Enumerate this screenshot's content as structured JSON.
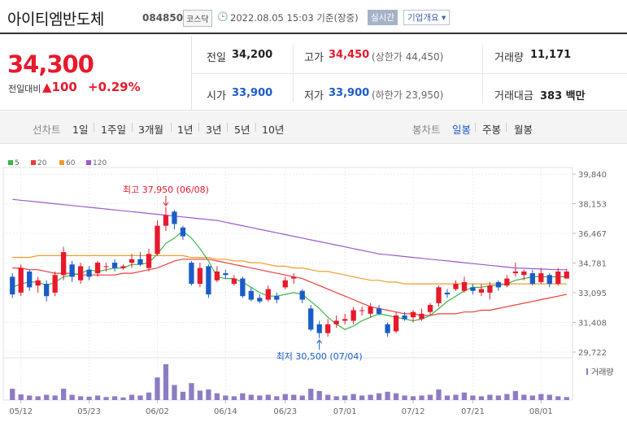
{
  "header": {
    "name": "아이티엠반도체",
    "code": "084850",
    "market": "코스닥",
    "datetime": "2022.08.05 15:03 기준(장중)",
    "realtime_btn": "실시간",
    "company_btn": "기업개요"
  },
  "price": {
    "current": "34,300",
    "diff_label": "전일대비",
    "diff_value": "▲100",
    "diff_rate": "+0.29%"
  },
  "summary": {
    "prev_close_label": "전일",
    "prev_close": "34,200",
    "high_label": "고가",
    "high": "34,450",
    "upper_limit": "(상한가 44,450)",
    "volume_label": "거래량",
    "volume": "11,171",
    "open_label": "시가",
    "open": "33,900",
    "low_label": "저가",
    "low": "33,900",
    "lower_limit": "(하한가 23,950)",
    "amount_label": "거래대금",
    "amount": "383 백만"
  },
  "toolbar": {
    "line_label": "선차트",
    "line_periods": [
      "1일",
      "1주일",
      "3개월",
      "1년",
      "3년",
      "5년",
      "10년"
    ],
    "candle_label": "봉차트",
    "candle_periods": [
      "일봉",
      "주봉",
      "월봉"
    ],
    "candle_active": "일봉"
  },
  "colors": {
    "up": "#e8192c",
    "down": "#1a5cc8",
    "ma5": "#3cb44b",
    "ma20": "#e8403a",
    "ma60": "#f39c2b",
    "ma120": "#9b59d0",
    "volume": "#8e7cc3"
  },
  "chart_data": {
    "type": "candlestick",
    "legend": [
      "5",
      "20",
      "60",
      "120"
    ],
    "y_ticks": [
      "39,840",
      "38,153",
      "36,467",
      "34,781",
      "33,095",
      "31,408",
      "29,722"
    ],
    "ylim": [
      29722,
      39840
    ],
    "x_ticks": [
      "05/12",
      "05/23",
      "06/02",
      "06/14",
      "06/23",
      "07/01",
      "07/12",
      "07/21",
      "08/01"
    ],
    "high_annotation": "최고 37,950 (06/08)",
    "low_annotation": "최저 30,500 (07/04)",
    "volume_label": "거래량",
    "candles": [
      [
        34000,
        33000,
        34200,
        32800
      ],
      [
        33100,
        34500,
        34700,
        32900
      ],
      [
        34300,
        33400,
        34400,
        33200
      ],
      [
        33500,
        33800,
        34000,
        33100
      ],
      [
        33600,
        32900,
        33800,
        32600
      ],
      [
        33100,
        34100,
        34300,
        32900
      ],
      [
        34100,
        35400,
        35700,
        33800
      ],
      [
        34700,
        34000,
        34900,
        33700
      ],
      [
        33800,
        34600,
        34800,
        33600
      ],
      [
        34400,
        34000,
        34600,
        33800
      ],
      [
        34200,
        34800,
        34900,
        34000
      ],
      [
        34600,
        34600,
        34800,
        34300
      ],
      [
        34800,
        34500,
        35000,
        34300
      ],
      [
        34500,
        34600,
        34700,
        34400
      ],
      [
        34800,
        35000,
        35300,
        34500
      ],
      [
        35000,
        34700,
        35400,
        34600
      ],
      [
        34500,
        35300,
        35600,
        34300
      ],
      [
        35300,
        36900,
        37200,
        35200
      ],
      [
        36900,
        37500,
        37950,
        36600
      ],
      [
        37700,
        37000,
        37800,
        36700
      ],
      [
        36800,
        36300,
        36900,
        36100
      ],
      [
        34800,
        33600,
        34900,
        33500
      ],
      [
        33600,
        34500,
        34800,
        33400
      ],
      [
        34600,
        33000,
        34700,
        32800
      ],
      [
        33800,
        34300,
        34600,
        33700
      ],
      [
        34200,
        34100,
        34400,
        33900
      ],
      [
        33600,
        33900,
        34100,
        33500
      ],
      [
        33900,
        32900,
        34000,
        32800
      ],
      [
        33200,
        32700,
        33400,
        32600
      ],
      [
        32800,
        32600,
        33000,
        32500
      ],
      [
        32700,
        33300,
        33500,
        32600
      ],
      [
        32900,
        32700,
        33100,
        32500
      ],
      [
        33400,
        33800,
        34000,
        33300
      ],
      [
        33900,
        34000,
        34200,
        33600
      ],
      [
        33200,
        32700,
        33300,
        32500
      ],
      [
        32200,
        31000,
        32400,
        30900
      ],
      [
        31300,
        30800,
        31500,
        30500
      ],
      [
        30800,
        31300,
        31600,
        30600
      ],
      [
        31300,
        31500,
        31800,
        31100
      ],
      [
        31500,
        31600,
        31900,
        31300
      ],
      [
        31500,
        32100,
        32300,
        31300
      ],
      [
        32100,
        32100,
        32300,
        31800
      ],
      [
        31900,
        32300,
        32500,
        31700
      ],
      [
        32200,
        31900,
        32400,
        31800
      ],
      [
        31300,
        30800,
        31400,
        30600
      ],
      [
        30900,
        31800,
        32000,
        30800
      ],
      [
        31800,
        31600,
        32000,
        31500
      ],
      [
        31700,
        32000,
        32100,
        31400
      ],
      [
        31600,
        31900,
        32200,
        31500
      ],
      [
        32000,
        32400,
        32500,
        31800
      ],
      [
        32500,
        33400,
        33500,
        32300
      ],
      [
        33100,
        33000,
        33300,
        32800
      ],
      [
        33300,
        33600,
        33800,
        33200
      ],
      [
        33200,
        33700,
        34000,
        33100
      ],
      [
        33400,
        33200,
        33600,
        33000
      ],
      [
        33100,
        33300,
        33600,
        32900
      ],
      [
        33100,
        33500,
        33700,
        32700
      ],
      [
        33700,
        33400,
        33800,
        33200
      ],
      [
        33500,
        33900,
        34100,
        33400
      ],
      [
        34200,
        34300,
        34800,
        34000
      ],
      [
        34100,
        34300,
        34400,
        33800
      ],
      [
        34200,
        33600,
        34400,
        33500
      ],
      [
        33700,
        34200,
        34500,
        33600
      ],
      [
        34100,
        33600,
        34200,
        33400
      ],
      [
        33600,
        34300,
        34500,
        33500
      ],
      [
        33900,
        34300,
        34450,
        33900
      ]
    ],
    "ma5": [
      33400,
      33600,
      33700,
      33700,
      33500,
      33700,
      34000,
      34100,
      34200,
      34400,
      34300,
      34400,
      34500,
      34500,
      34700,
      34700,
      34800,
      35300,
      35900,
      36200,
      36600,
      36200,
      35600,
      34900,
      34000,
      33900,
      33900,
      33700,
      33400,
      33100,
      32900,
      32900,
      33000,
      33100,
      33000,
      32600,
      32200,
      31700,
      31300,
      31000,
      31200,
      31500,
      31700,
      31900,
      31800,
      31700,
      31600,
      31500,
      31600,
      31800,
      32200,
      32600,
      32900,
      33200,
      33400,
      33400,
      33500,
      33500,
      33600,
      33800,
      33900,
      34000,
      34000,
      34000,
      34000,
      34000
    ],
    "ma20": [
      34500,
      34500,
      34400,
      34400,
      34300,
      34200,
      34200,
      34200,
      34100,
      34100,
      34100,
      34100,
      34100,
      34200,
      34200,
      34300,
      34400,
      34500,
      34700,
      34900,
      35000,
      35000,
      35000,
      35000,
      34900,
      34800,
      34700,
      34600,
      34500,
      34400,
      34300,
      34200,
      34100,
      34000,
      33900,
      33700,
      33500,
      33300,
      33100,
      32900,
      32700,
      32500,
      32300,
      32200,
      32100,
      32000,
      31900,
      31900,
      31800,
      31800,
      31900,
      31900,
      31900,
      32000,
      32000,
      32100,
      32100,
      32200,
      32300,
      32400,
      32500,
      32600,
      32700,
      32800,
      32900,
      33000
    ],
    "ma60": [
      35100,
      35100,
      35100,
      35200,
      35200,
      35200,
      35200,
      35200,
      35200,
      35200,
      35200,
      35200,
      35200,
      35200,
      35200,
      35200,
      35200,
      35200,
      35200,
      35200,
      35200,
      35100,
      35100,
      35100,
      35000,
      35000,
      34900,
      34900,
      34800,
      34800,
      34700,
      34600,
      34600,
      34500,
      34500,
      34400,
      34300,
      34300,
      34200,
      34100,
      34000,
      33900,
      33800,
      33800,
      33700,
      33700,
      33600,
      33600,
      33600,
      33600,
      33600,
      33600,
      33600,
      33600,
      33600,
      33600,
      33600,
      33600,
      33600,
      33600,
      33600,
      33600,
      33600,
      33600,
      33600,
      33600
    ],
    "ma120": [
      38400,
      38350,
      38300,
      38250,
      38200,
      38150,
      38100,
      38050,
      38000,
      37950,
      37900,
      37850,
      37800,
      37750,
      37700,
      37650,
      37600,
      37550,
      37500,
      37450,
      37400,
      37350,
      37300,
      37250,
      37200,
      37100,
      37000,
      36900,
      36800,
      36700,
      36600,
      36500,
      36400,
      36300,
      36200,
      36100,
      36000,
      35900,
      35800,
      35700,
      35600,
      35500,
      35400,
      35300,
      35250,
      35200,
      35150,
      35100,
      35050,
      35000,
      34950,
      34900,
      34850,
      34800,
      34750,
      34700,
      34650,
      34600,
      34550,
      34500,
      34480,
      34460,
      34440,
      34420,
      34400,
      34400
    ],
    "volume": [
      30,
      15,
      12,
      10,
      14,
      12,
      30,
      14,
      10,
      9,
      12,
      8,
      10,
      7,
      14,
      12,
      20,
      60,
      95,
      40,
      22,
      45,
      25,
      28,
      18,
      12,
      10,
      18,
      14,
      12,
      14,
      10,
      16,
      14,
      12,
      30,
      24,
      14,
      10,
      12,
      16,
      12,
      14,
      18,
      22,
      18,
      12,
      10,
      12,
      14,
      28,
      12,
      14,
      20,
      12,
      10,
      14,
      12,
      16,
      24,
      14,
      12,
      16,
      14,
      10,
      8
    ]
  }
}
